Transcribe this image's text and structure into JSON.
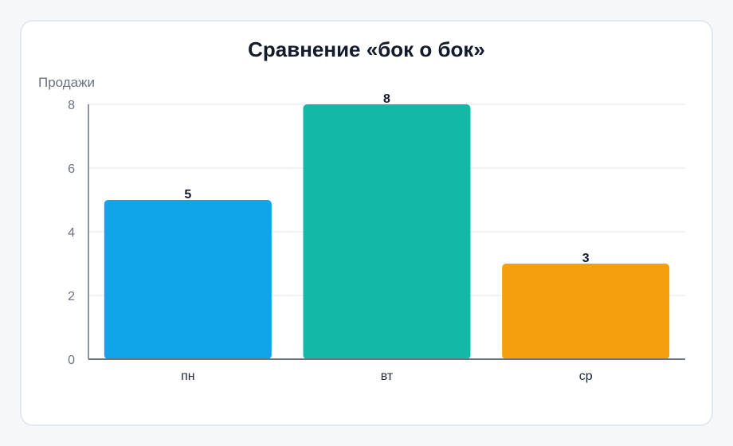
{
  "chart_data": {
    "type": "bar",
    "title": "Сравнение «бок о бок»",
    "xlabel": "",
    "ylabel": "Продажи",
    "categories": [
      "пн",
      "вт",
      "ср"
    ],
    "values": [
      5,
      8,
      3
    ],
    "colors": [
      "#10a5e9",
      "#14b8a6",
      "#f49f0b"
    ],
    "ylim": [
      0,
      8
    ],
    "yticks": [
      "0",
      "2",
      "4",
      "6",
      "8"
    ],
    "grid": true,
    "legend": "none"
  }
}
